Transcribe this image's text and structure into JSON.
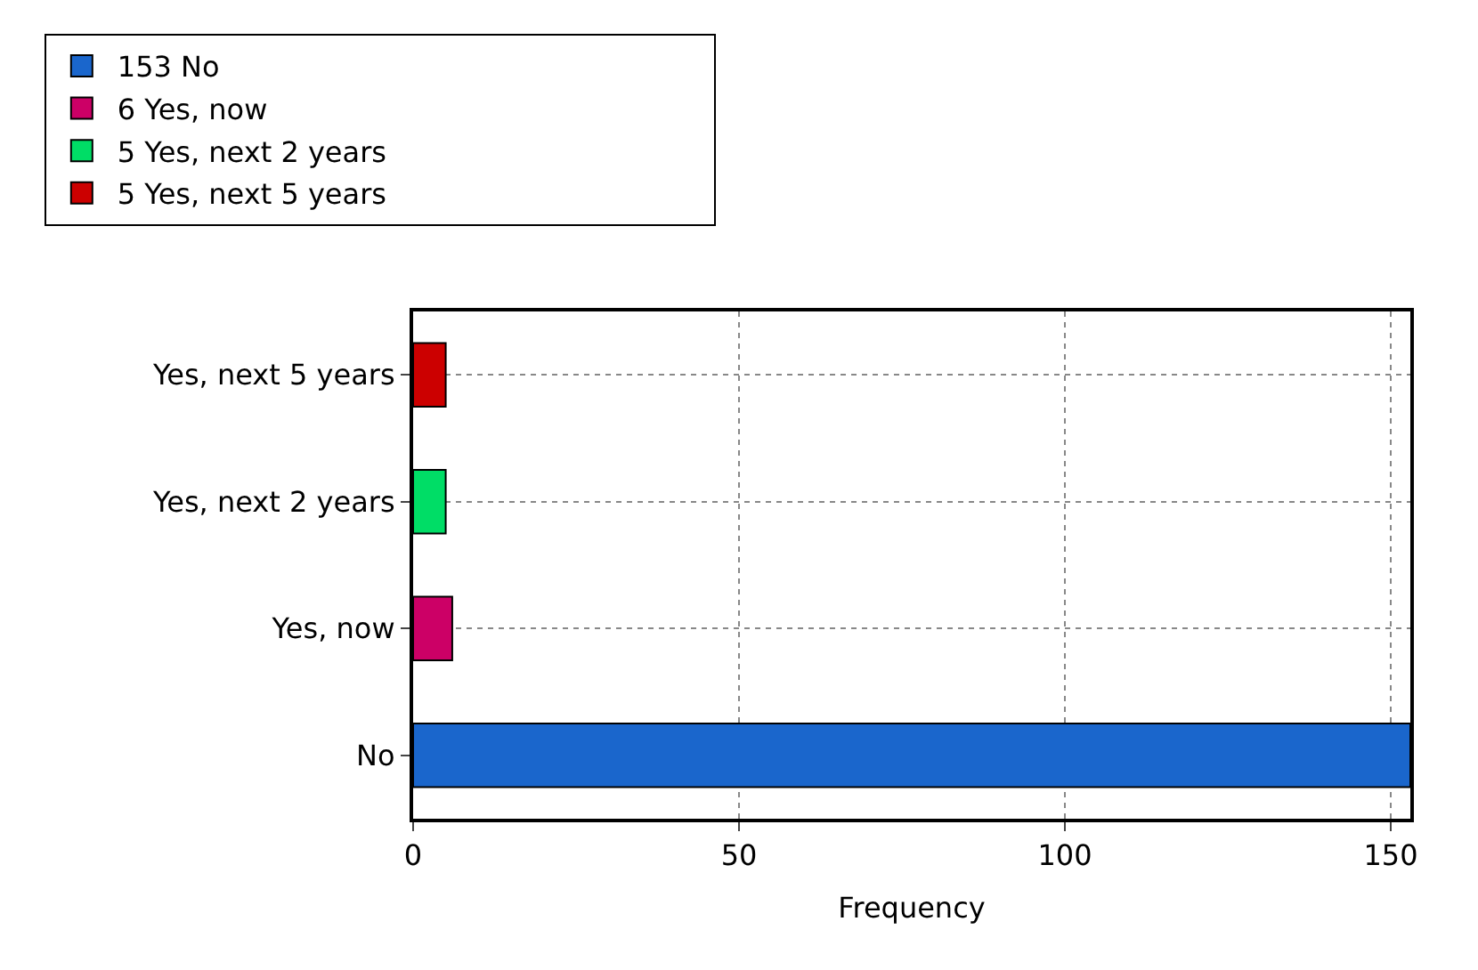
{
  "chart_data": {
    "type": "bar",
    "orientation": "horizontal",
    "xlabel": "Frequency",
    "categories": [
      "Yes, next 5 years",
      "Yes, next 2 years",
      "Yes, now",
      "No"
    ],
    "series": [
      {
        "name": "153 No",
        "color": "#1a66cc",
        "values": [
          null,
          null,
          null,
          153
        ]
      },
      {
        "name": "6 Yes, now",
        "color": "#cc0066",
        "values": [
          null,
          null,
          6,
          null
        ]
      },
      {
        "name": "5 Yes, next 2 years",
        "color": "#00dd66",
        "values": [
          null,
          5,
          null,
          null
        ]
      },
      {
        "name": "5 Yes, next 5 years",
        "color": "#cc0000",
        "values": [
          5,
          null,
          null,
          null
        ]
      }
    ],
    "xlim": [
      0,
      153
    ],
    "xticks": [
      0,
      50,
      100,
      150
    ],
    "grid": true,
    "legend": "top left"
  }
}
